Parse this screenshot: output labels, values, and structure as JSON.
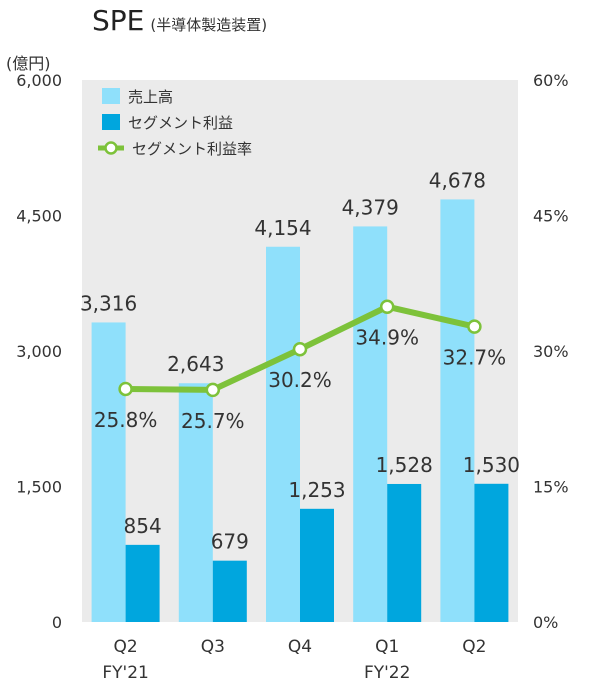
{
  "title": "SPE",
  "subtitle": "(半導体製造装置)",
  "unit_label": "(億円)",
  "chart_data": {
    "type": "bar",
    "categories": [
      "Q2",
      "Q3",
      "Q4",
      "Q1",
      "Q2"
    ],
    "category_group_labels": [
      "FY'21",
      "",
      "",
      "FY'22",
      ""
    ],
    "ylim": [
      0,
      6000
    ],
    "y2lim": [
      0,
      60
    ],
    "left_ticks": [
      "0",
      "1,500",
      "3,000",
      "4,500",
      "6,000"
    ],
    "right_ticks": [
      "0%",
      "15%",
      "30%",
      "45%",
      "60%"
    ],
    "series": [
      {
        "name": "売上高",
        "type": "bar",
        "axis": "left",
        "color": "#8fe0fb",
        "values": [
          3316,
          2643,
          4154,
          4379,
          4678
        ],
        "labels": [
          "3,316",
          "2,643",
          "4,154",
          "4,379",
          "4,678"
        ]
      },
      {
        "name": "セグメント利益",
        "type": "bar",
        "axis": "left",
        "color": "#00a6de",
        "values": [
          854,
          679,
          1253,
          1528,
          1530
        ],
        "labels": [
          "854",
          "679",
          "1,253",
          "1,528",
          "1,530"
        ]
      },
      {
        "name": "セグメント利益率",
        "type": "line",
        "axis": "right",
        "color": "#7dc23a",
        "values": [
          25.8,
          25.7,
          30.2,
          34.9,
          32.7
        ],
        "labels": [
          "25.8%",
          "25.7%",
          "30.2%",
          "34.9%",
          "32.7%"
        ]
      }
    ],
    "grid": false,
    "plot_background": "#ebebeb",
    "legend_position": "top-left"
  }
}
